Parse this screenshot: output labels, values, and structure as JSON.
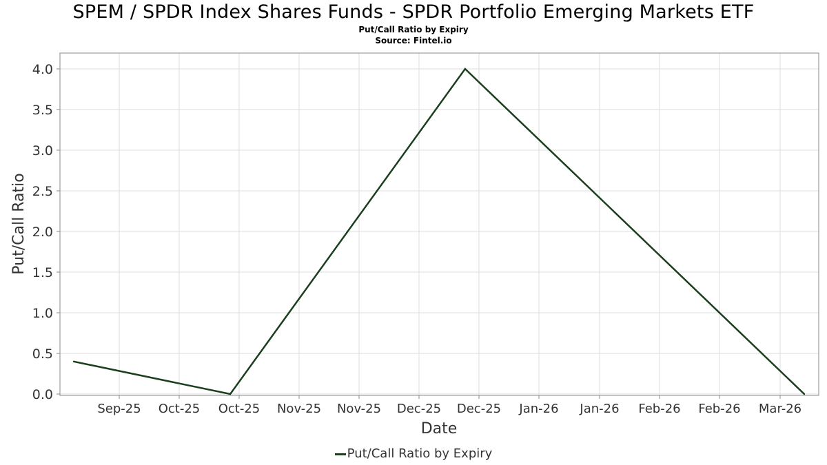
{
  "header": {
    "title": "SPEM / SPDR Index Shares Funds - SPDR Portfolio Emerging Markets ETF",
    "subtitle": "Put/Call Ratio by Expiry",
    "source": "Source: Fintel.io"
  },
  "colors": {
    "series": "#1b3f1e",
    "grid": "#dddddd",
    "frame": "#888888"
  },
  "chart_data": {
    "type": "line",
    "xlabel": "Date",
    "ylabel": "Put/Call Ratio",
    "ylim": [
      0,
      4.2
    ],
    "yticks": [
      "0.0",
      "0.5",
      "1.0",
      "1.5",
      "2.0",
      "2.5",
      "3.0",
      "3.5",
      "4.0"
    ],
    "xticks": [
      "Sep-25",
      "Oct-25",
      "Oct-25",
      "Nov-25",
      "Nov-25",
      "Dec-25",
      "Dec-25",
      "Jan-26",
      "Jan-26",
      "Feb-26",
      "Feb-26",
      "Mar-26"
    ],
    "grid": true,
    "legend_position": "bottom-center",
    "series": [
      {
        "name": "Put/Call Ratio by Expiry",
        "x": [
          "2025-09-05",
          "2025-10-17",
          "2025-12-19",
          "2026-03-20"
        ],
        "y": [
          0.4,
          0.0,
          4.0,
          0.0
        ]
      }
    ]
  }
}
